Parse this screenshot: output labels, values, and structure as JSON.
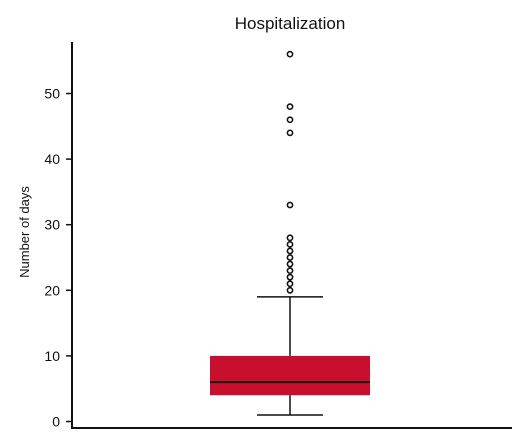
{
  "chart_data": {
    "type": "box",
    "title": "Hospitalization",
    "xlabel": "",
    "ylabel": "Number of days",
    "yticks": [
      0,
      10,
      20,
      30,
      40,
      50
    ],
    "ylim": [
      -1,
      57
    ],
    "grid": false,
    "legend": "none",
    "box": {
      "min": 1,
      "q1": 4,
      "median": 6,
      "q3": 10,
      "max": 19,
      "outliers": [
        20,
        21,
        22,
        23,
        24,
        25,
        26,
        27,
        28,
        33,
        44,
        46,
        48,
        56
      ]
    },
    "colors": {
      "box_fill": "#c8102e",
      "lines": "#111111",
      "outlier_stroke": "#111111"
    }
  }
}
